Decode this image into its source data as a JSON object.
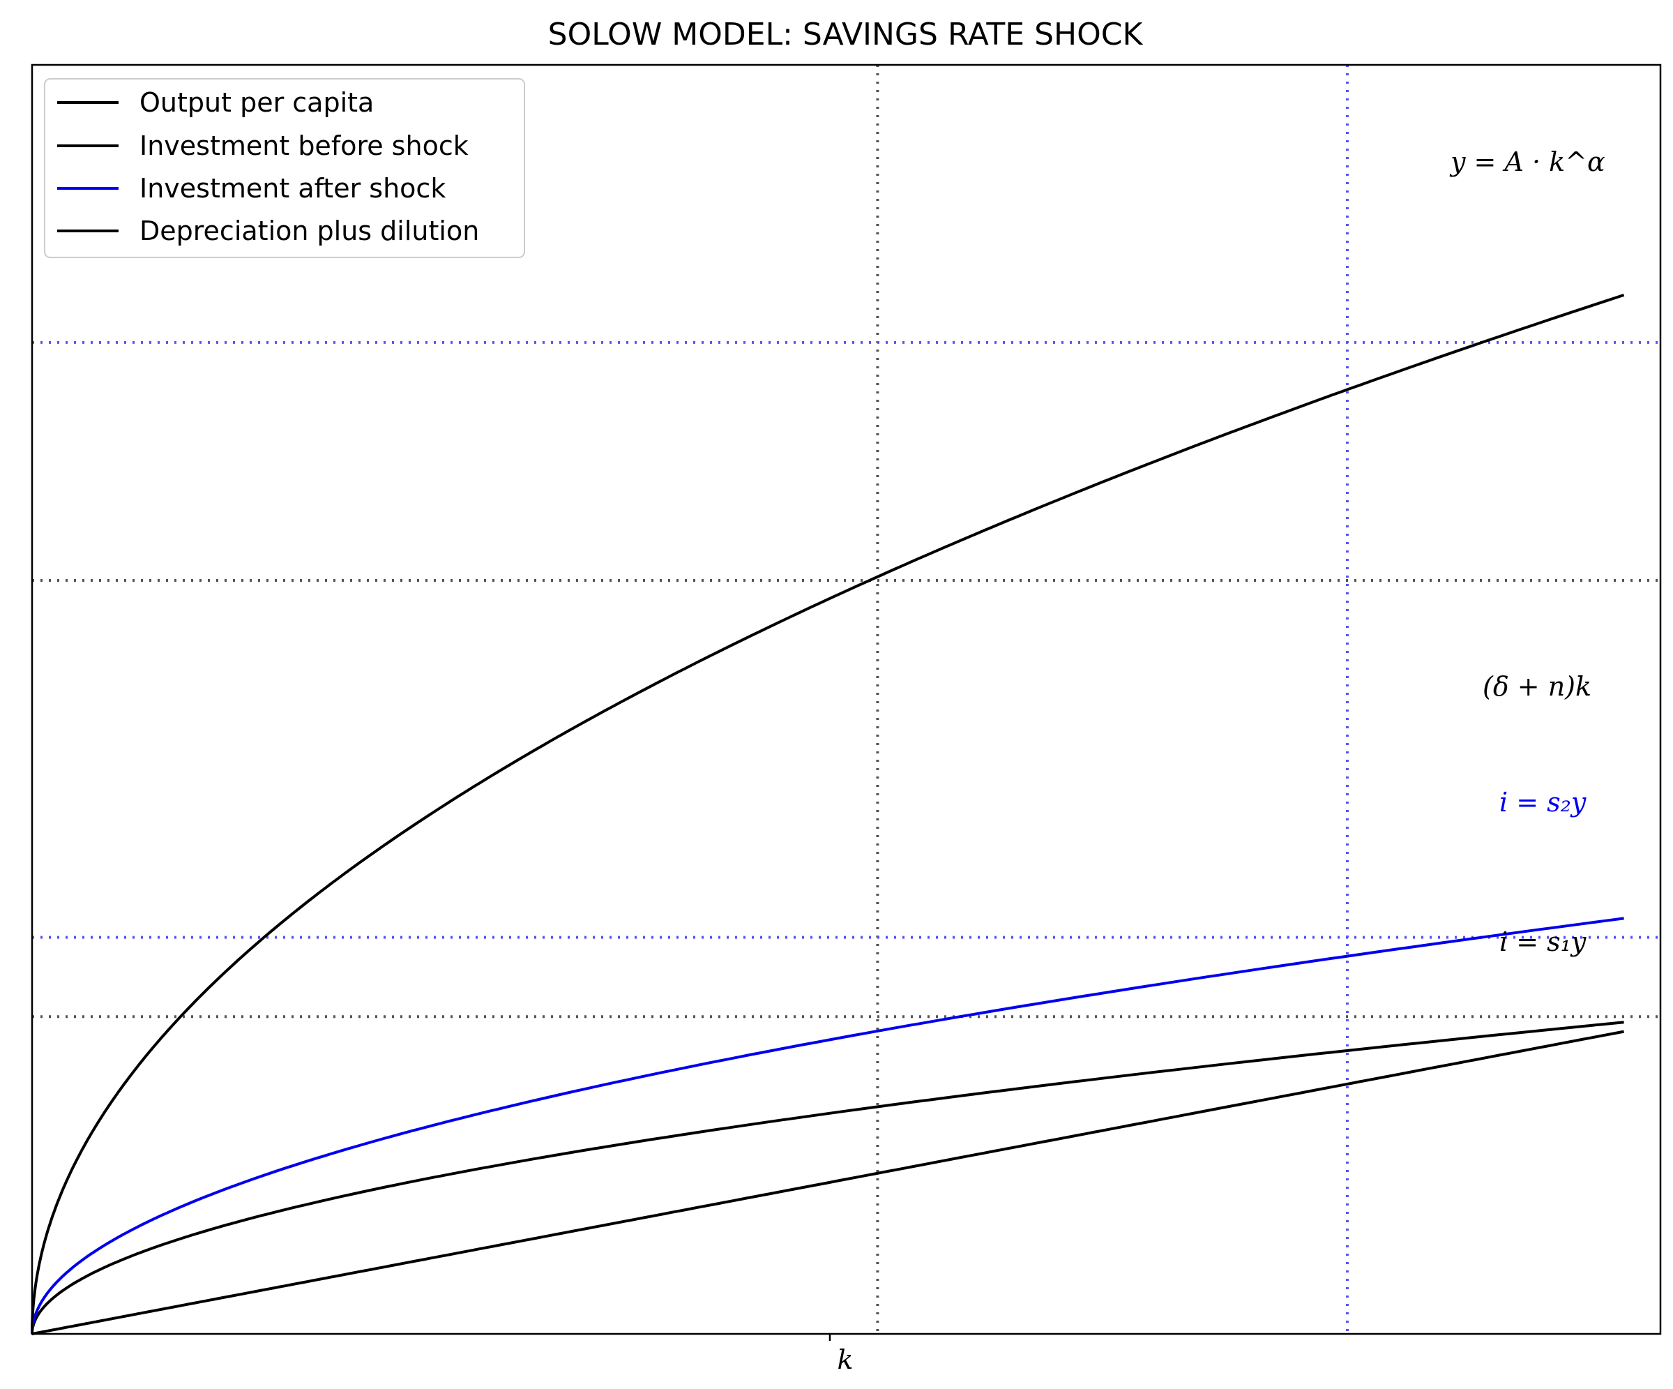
{
  "chart_data": {
    "type": "line",
    "title": "SOLOW MODEL: SAVINGS RATE SHOCK",
    "xlabel": "k",
    "ylabel": "",
    "xlim": [
      0,
      3.12
    ],
    "ylim": [
      0,
      3.2
    ],
    "legend_position": "top-left",
    "model": {
      "A": 1.5,
      "alpha": 0.5,
      "s1": 0.3,
      "s2": 0.4,
      "delta_plus_n": 0.25
    },
    "series": [
      {
        "name": "Output per capita",
        "color": "#000000",
        "label": "y = A · k^α"
      },
      {
        "name": "Investment before shock",
        "color": "#000000",
        "label": "i = s₁y"
      },
      {
        "name": "Investment after shock",
        "color": "#0000ee",
        "label": "i = s₂y"
      },
      {
        "name": "Depreciation plus dilution",
        "color": "#000000",
        "label": "(δ + n)k"
      }
    ],
    "reference_lines": {
      "initial_steady_state": {
        "k": 1.62,
        "y": 1.9,
        "i": 0.8,
        "color": "#555555"
      },
      "new_steady_state": {
        "k": 2.52,
        "y": 2.5,
        "i": 1.0,
        "color": "#5555ee"
      }
    },
    "x_ticks": [
      {
        "value": 1.62,
        "label": "k"
      }
    ]
  }
}
